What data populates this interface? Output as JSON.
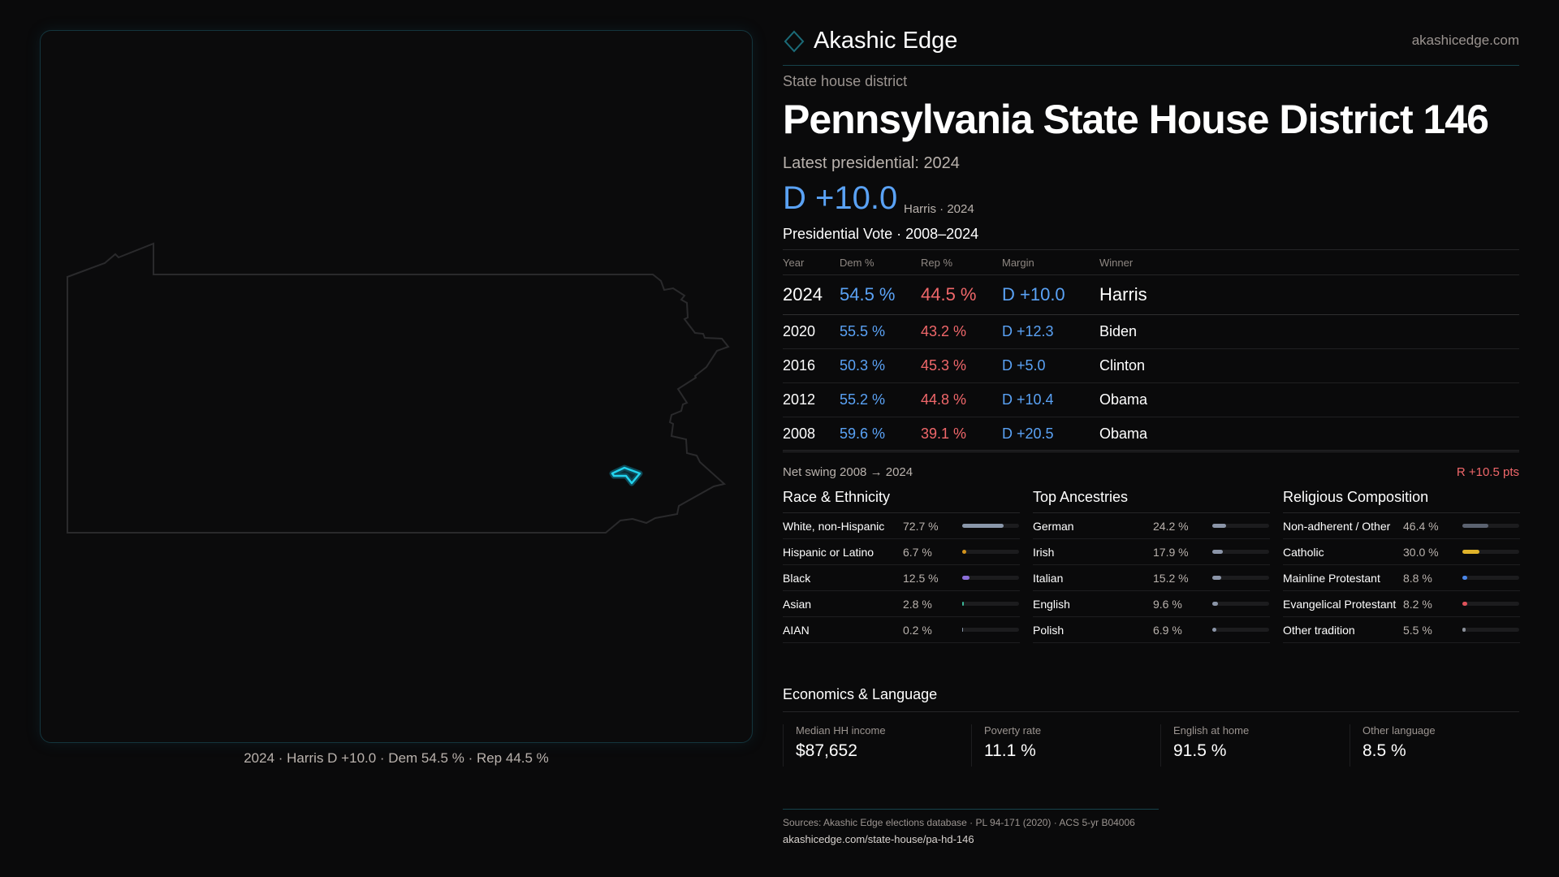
{
  "brand": {
    "name": "Akashic Edge",
    "domain": "akashicedge.com",
    "logo_icon": "diamond-icon",
    "accent": "#1b6b78"
  },
  "map": {
    "caption": "2024 · Harris D +10.0 · Dem 54.5 % · Rep 44.5 %",
    "highlight_color": "#22d3ee"
  },
  "district": {
    "kind": "State house district",
    "title": "Pennsylvania State House District 146",
    "latest_label": "Latest presidential: 2024",
    "margin": "D +10.0",
    "margin_sub": "Harris · 2024"
  },
  "colors": {
    "dem": "#5aa2f5",
    "rep": "#f0676a"
  },
  "presidential": {
    "title": "Presidential Vote · 2008–2024",
    "headers": [
      "Year",
      "Dem %",
      "Rep %",
      "Margin",
      "Winner"
    ],
    "rows": [
      {
        "year": "2024",
        "dem": "54.5 %",
        "rep": "44.5 %",
        "margin": "D +10.0",
        "winner": "Harris"
      },
      {
        "year": "2020",
        "dem": "55.5 %",
        "rep": "43.2 %",
        "margin": "D +12.3",
        "winner": "Biden"
      },
      {
        "year": "2016",
        "dem": "50.3 %",
        "rep": "45.3 %",
        "margin": "D +5.0",
        "winner": "Clinton"
      },
      {
        "year": "2012",
        "dem": "55.2 %",
        "rep": "44.8 %",
        "margin": "D +10.4",
        "winner": "Obama"
      },
      {
        "year": "2008",
        "dem": "59.6 %",
        "rep": "39.1 %",
        "margin": "D +20.5",
        "winner": "Obama"
      }
    ],
    "swing_label": "Net swing 2008 → 2024",
    "swing_value": "R +10.5 pts"
  },
  "demographics": [
    {
      "title": "Race & Ethnicity",
      "items": [
        {
          "label": "White, non-Hispanic",
          "value": "72.7 %",
          "pct": 72.7,
          "color": "#8a97aa"
        },
        {
          "label": "Hispanic or Latino",
          "value": "6.7 %",
          "pct": 6.7,
          "color": "#d4941c"
        },
        {
          "label": "Black",
          "value": "12.5 %",
          "pct": 12.5,
          "color": "#8b6fd8"
        },
        {
          "label": "Asian",
          "value": "2.8 %",
          "pct": 2.8,
          "color": "#3bb597"
        },
        {
          "label": "AIAN",
          "value": "0.2 %",
          "pct": 0.2,
          "color": "#8a97aa"
        }
      ]
    },
    {
      "title": "Top Ancestries",
      "items": [
        {
          "label": "German",
          "value": "24.2 %",
          "pct": 24.2,
          "color": "#8b95a8"
        },
        {
          "label": "Irish",
          "value": "17.9 %",
          "pct": 17.9,
          "color": "#8b95a8"
        },
        {
          "label": "Italian",
          "value": "15.2 %",
          "pct": 15.2,
          "color": "#8b95a8"
        },
        {
          "label": "English",
          "value": "9.6 %",
          "pct": 9.6,
          "color": "#8b95a8"
        },
        {
          "label": "Polish",
          "value": "6.9 %",
          "pct": 6.9,
          "color": "#8b95a8"
        }
      ]
    },
    {
      "title": "Religious Composition",
      "items": [
        {
          "label": "Non-adherent / Other",
          "value": "46.4 %",
          "pct": 46.4,
          "color": "#5b6270"
        },
        {
          "label": "Catholic",
          "value": "30.0 %",
          "pct": 30.0,
          "color": "#e0b32a"
        },
        {
          "label": "Mainline Protestant",
          "value": "8.8 %",
          "pct": 8.8,
          "color": "#4a86e8"
        },
        {
          "label": "Evangelical Protestant",
          "value": "8.2 %",
          "pct": 8.2,
          "color": "#e0525a"
        },
        {
          "label": "Other tradition",
          "value": "5.5 %",
          "pct": 5.5,
          "color": "#8a8f99"
        }
      ]
    }
  ],
  "economics": {
    "title": "Economics & Language",
    "cards": [
      {
        "label": "Median HH income",
        "value": "$87,652"
      },
      {
        "label": "Poverty rate",
        "value": "11.1 %"
      },
      {
        "label": "English at home",
        "value": "91.5 %"
      },
      {
        "label": "Other language",
        "value": "8.5 %"
      }
    ]
  },
  "footer": {
    "sources": "Sources: Akashic Edge elections database · PL 94-171 (2020) · ACS 5-yr B04006",
    "url": "akashicedge.com/state-house/pa-hd-146"
  }
}
